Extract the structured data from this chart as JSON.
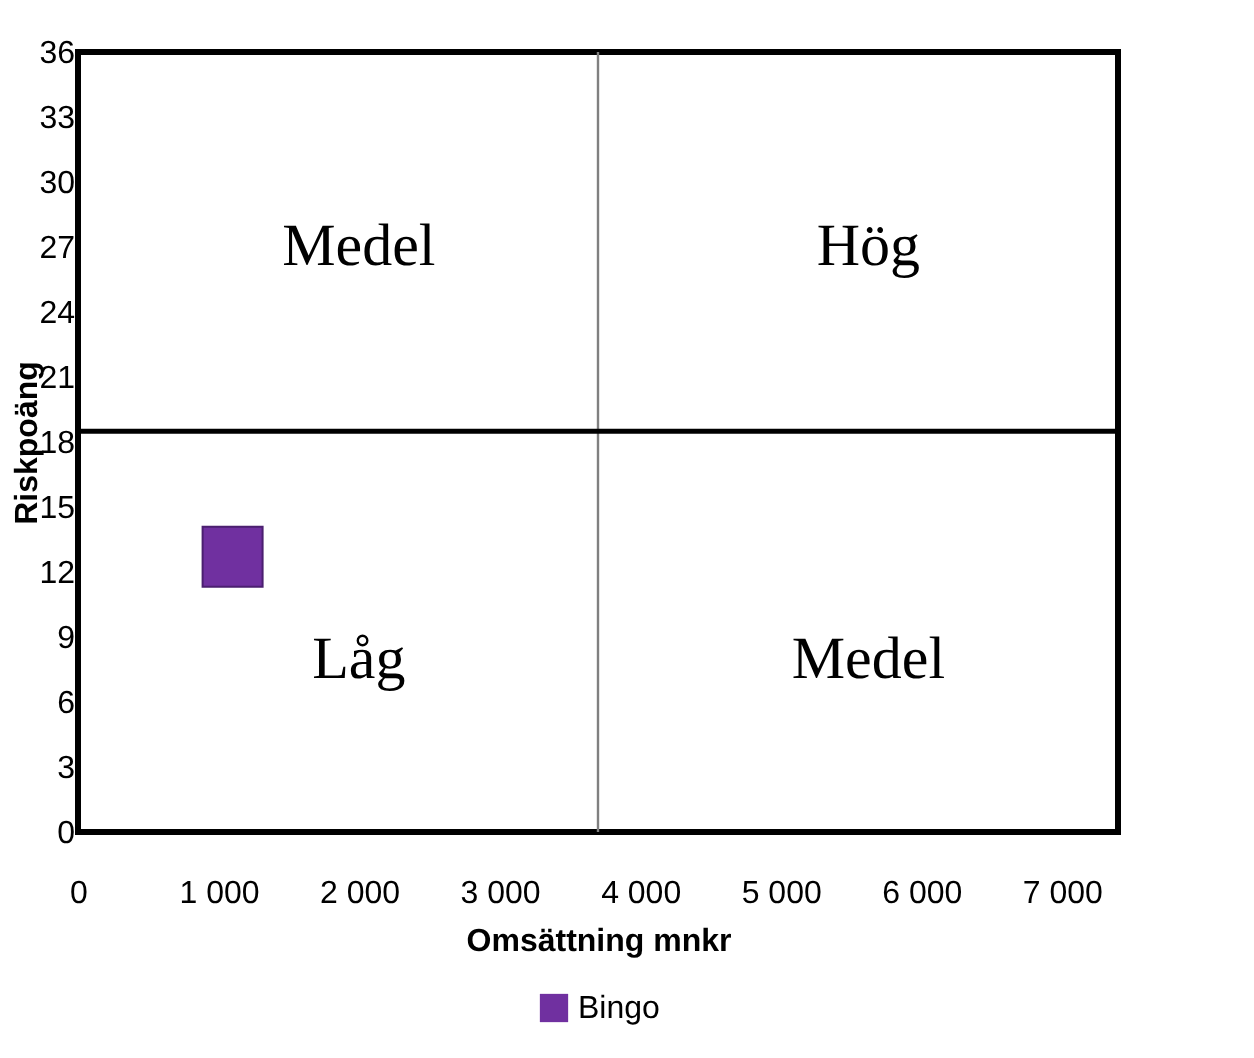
{
  "chart_data": {
    "type": "scatter",
    "xlabel": "Omsättning  mnkr",
    "ylabel": "Riskpoäng",
    "series": [
      {
        "name": "Bingo",
        "color": "#7030a0",
        "x": [
          1100
        ],
        "values": [
          12.7
        ]
      }
    ],
    "marker": "square",
    "xlim": [
      0,
      7400
    ],
    "xticks": [
      {
        "value": 0,
        "label": "0"
      },
      {
        "value": 1000,
        "label": "1 000"
      },
      {
        "value": 2000,
        "label": "2 000"
      },
      {
        "value": 3000,
        "label": "3 000"
      },
      {
        "value": 4000,
        "label": "4 000"
      },
      {
        "value": 5000,
        "label": "5 000"
      },
      {
        "value": 6000,
        "label": "6 000"
      },
      {
        "value": 7000,
        "label": "7 000"
      }
    ],
    "ylim": [
      0,
      36
    ],
    "yticks": [
      0,
      3,
      6,
      9,
      12,
      15,
      18,
      21,
      24,
      27,
      30,
      33,
      36
    ],
    "ref_lines": [
      {
        "axis": "x",
        "value": 3700,
        "color": "#808080"
      },
      {
        "axis": "y",
        "value": 18.5,
        "color": "#000000"
      }
    ],
    "annotations": [
      "Medel",
      "Hög",
      "Låg",
      "Medel"
    ],
    "grid": false,
    "legend": "bottom"
  }
}
